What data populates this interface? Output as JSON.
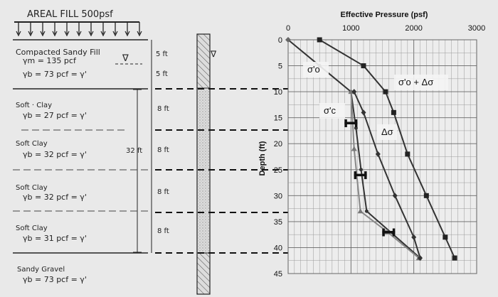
{
  "soil_profile": {
    "fill_label": "AREAL  FILL  500psf",
    "layers": [
      {
        "name": "Compacted  Sandy  Fill",
        "line1": "γm = 135 pcf",
        "line2": "γb = 73 pcf = γ'",
        "thickness_above": "5 ft",
        "thickness_below": "5 ft"
      },
      {
        "name": "Soft · Clay",
        "line1": "γb = 27 pcf = γ'",
        "thickness": "8 ft"
      },
      {
        "name": "Soft  Clay",
        "line1": "γb = 32 pcf = γ'",
        "thickness": "8 ft"
      },
      {
        "name": "Soft  Clay",
        "line1": "γb = 32 pcf = γ'",
        "thickness": "8 ft"
      },
      {
        "name": "Soft  Clay",
        "line1": "γb = 31 pcf = γ'",
        "thickness": "8 ft"
      },
      {
        "name": "Sandy  Gravel",
        "line1": "γb = 73 pcf = γ'"
      }
    ],
    "total_clay": "32 ft",
    "water_table_symbol": "∇"
  },
  "chart_data": {
    "type": "line",
    "title": "Effective Pressure (psf)",
    "xlabel": "Effective Pressure (psf)",
    "ylabel": "Depth (ft)",
    "xlim": [
      0,
      3000
    ],
    "ylim": [
      0,
      45
    ],
    "x_ticks": [
      "0",
      "1000",
      "2000",
      "3000"
    ],
    "y_ticks": [
      "0",
      "5",
      "10",
      "15",
      "20",
      "25",
      "30",
      "35",
      "40",
      "45"
    ],
    "x_axis_position": "top",
    "grid": true,
    "series": [
      {
        "name": "σ'o",
        "marker": "none",
        "color": "#333333",
        "points": [
          [
            0,
            0
          ],
          [
            500,
            5
          ],
          [
            1000,
            10
          ],
          [
            1080,
            17
          ],
          [
            1160,
            25
          ],
          [
            1250,
            33
          ],
          [
            2100,
            42
          ]
        ]
      },
      {
        "name": "σ'c",
        "marker": "triangle",
        "color": "#888888",
        "points": [
          [
            1000,
            10
          ],
          [
            1050,
            21
          ],
          [
            1150,
            33
          ],
          [
            1580,
            37
          ],
          [
            2080,
            42
          ]
        ]
      },
      {
        "name": "σ'o + Δσ",
        "marker": "square",
        "color": "#333333",
        "points": [
          [
            500,
            0
          ],
          [
            1200,
            5
          ],
          [
            1550,
            10
          ],
          [
            1680,
            14
          ],
          [
            1900,
            22
          ],
          [
            2200,
            30
          ],
          [
            2500,
            38
          ],
          [
            2650,
            42
          ]
        ]
      },
      {
        "name": "Δσ",
        "marker": "diamond",
        "color": "#333333",
        "points": [
          [
            1050,
            10
          ],
          [
            1200,
            14
          ],
          [
            1430,
            22
          ],
          [
            1700,
            30
          ],
          [
            2000,
            38
          ],
          [
            2100,
            42
          ]
        ]
      }
    ],
    "annotations": [
      {
        "text": "σ'o"
      },
      {
        "text": "σ'c"
      },
      {
        "text": "σ'o + Δσ"
      },
      {
        "text": "Δσ"
      }
    ],
    "midpoint_markers": [
      {
        "x": 1000,
        "y": 16
      },
      {
        "x": 1150,
        "y": 26
      },
      {
        "x": 1600,
        "y": 37
      }
    ]
  },
  "colors": {
    "background": "#e9e9e9",
    "grid": "#9a9a9a",
    "ink": "#222222",
    "dashed": "#111111"
  }
}
